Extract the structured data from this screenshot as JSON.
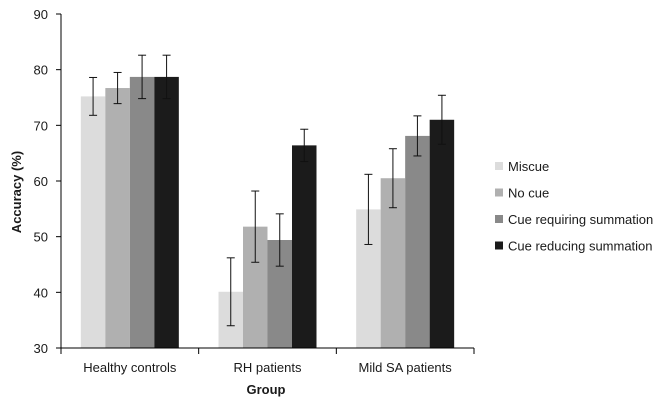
{
  "chart_data": {
    "type": "bar",
    "title": "",
    "xlabel": "Group",
    "ylabel": "Accuracy (%)",
    "ylim": [
      30,
      90
    ],
    "yticks": [
      30,
      40,
      50,
      60,
      70,
      80,
      90
    ],
    "grid": false,
    "legend_position": "right",
    "categories": [
      "Healthy controls",
      "RH patients",
      "Mild SA patients"
    ],
    "series": [
      {
        "name": "Miscue",
        "color": "#dcdcdc",
        "values": [
          75.2,
          40.1,
          54.9
        ],
        "errors": [
          3.4,
          6.1,
          6.3
        ]
      },
      {
        "name": "No cue",
        "color": "#b0b0b0",
        "values": [
          76.7,
          51.8,
          60.5
        ],
        "errors": [
          2.8,
          6.4,
          5.3
        ]
      },
      {
        "name": "Cue requiring summation",
        "color": "#898989",
        "values": [
          78.7,
          49.4,
          68.1
        ],
        "errors": [
          3.9,
          4.7,
          3.6
        ]
      },
      {
        "name": "Cue reducing summation",
        "color": "#1b1b1b",
        "values": [
          78.7,
          66.4,
          71.0
        ],
        "errors": [
          3.9,
          2.9,
          4.4
        ]
      }
    ]
  }
}
